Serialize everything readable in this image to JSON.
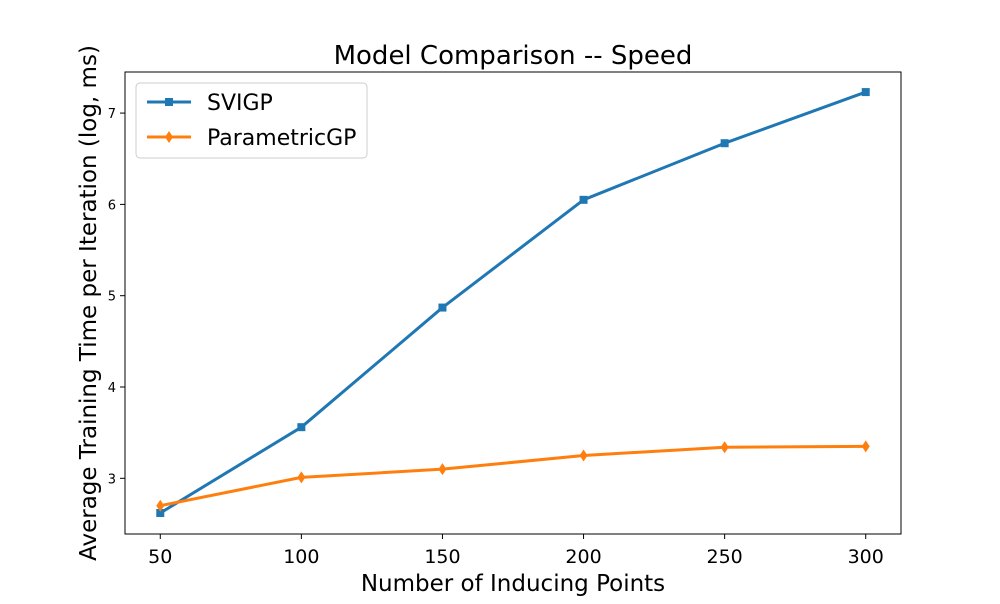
{
  "chart_data": {
    "type": "line",
    "title": "Model Comparison -- Speed",
    "xlabel": "Number of Inducing Points",
    "ylabel": "Average Training Time per Iteration (log, ms)",
    "x": [
      50,
      100,
      150,
      200,
      250,
      300
    ],
    "x_tick_labels": [
      "50",
      "100",
      "150",
      "200",
      "250",
      "300"
    ],
    "y_ticks": [
      3,
      4,
      5,
      6,
      7
    ],
    "y_tick_labels": [
      "3",
      "4",
      "5",
      "6",
      "7"
    ],
    "xlim": [
      37.5,
      312.5
    ],
    "ylim": [
      2.39,
      7.45
    ],
    "grid": false,
    "legend_position": "upper-left",
    "series": [
      {
        "name": "SVIGP",
        "color": "#1f77b4",
        "marker": "square",
        "values": [
          2.62,
          3.56,
          4.87,
          6.05,
          6.67,
          7.23
        ]
      },
      {
        "name": "ParametricGP",
        "color": "#ff7f0e",
        "marker": "diamond",
        "values": [
          2.7,
          3.01,
          3.1,
          3.25,
          3.34,
          3.35
        ]
      }
    ]
  }
}
